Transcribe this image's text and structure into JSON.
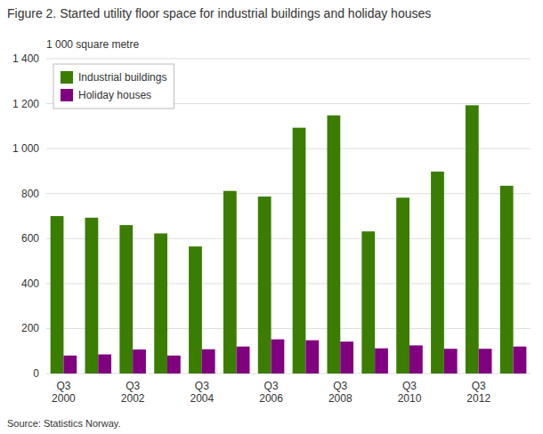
{
  "chart_data": {
    "type": "bar",
    "title": "Figure 2. Started utility floor space for industrial buildings and holiday houses",
    "ylabel": "1 000 square metre",
    "source": "Source: Statistics Norway.",
    "categories": [
      "Q3\n2000",
      null,
      "Q3\n2002",
      null,
      "Q3\n2004",
      null,
      "Q3\n2006",
      null,
      "Q3\n2008",
      null,
      "Q3\n2010",
      null,
      "Q3\n2012",
      null
    ],
    "series": [
      {
        "name": "Industrial buildings",
        "color": "#3a7d00",
        "values": [
          700,
          693,
          660,
          623,
          565,
          812,
          787,
          1093,
          1148,
          632,
          782,
          898,
          1193,
          835
        ]
      },
      {
        "name": "Holiday houses",
        "color": "#800080",
        "values": [
          80,
          85,
          107,
          80,
          108,
          120,
          152,
          148,
          142,
          112,
          125,
          110,
          110,
          120
        ]
      }
    ],
    "ylim": [
      0,
      1400
    ],
    "yticks": [
      0,
      200,
      400,
      600,
      800,
      {
        "value": 1000,
        "label": "1 000"
      },
      {
        "value": 1200,
        "label": "1 200"
      },
      {
        "value": 1400,
        "label": "1 400"
      }
    ],
    "grid": true,
    "legend": "upper left"
  }
}
